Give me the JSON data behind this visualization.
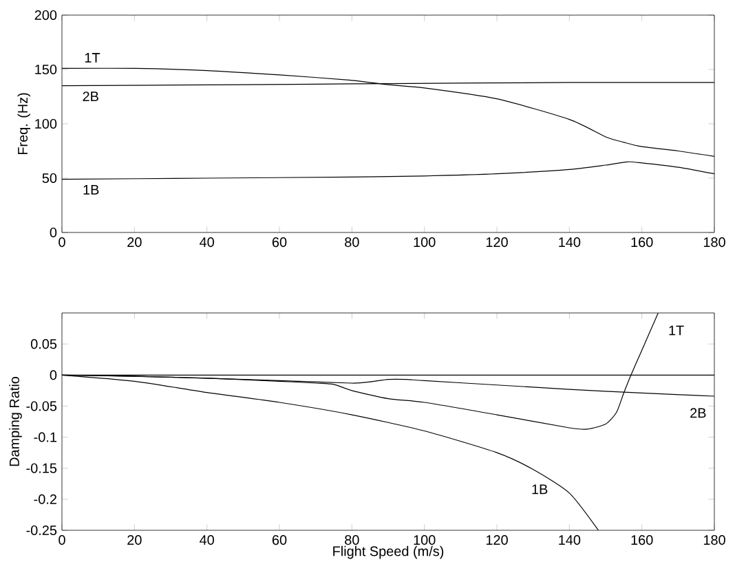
{
  "chart_data": [
    {
      "type": "line",
      "ylabel": "Freq. (Hz)",
      "xlim": [
        0,
        180
      ],
      "xticks": [
        0,
        20,
        40,
        60,
        80,
        100,
        120,
        140,
        160,
        180
      ],
      "ylim": [
        0,
        200
      ],
      "yticks": [
        0,
        50,
        100,
        150,
        200
      ],
      "series": [
        {
          "name": "1T",
          "color": "#000000",
          "x": [
            0,
            20,
            40,
            60,
            80,
            90,
            100,
            120,
            140,
            150,
            155,
            160,
            170,
            180
          ],
          "values": [
            151,
            151,
            149,
            145,
            140,
            136,
            133,
            123,
            104,
            88,
            83,
            79,
            75,
            70
          ]
        },
        {
          "name": "2B",
          "color": "#000000",
          "x": [
            0,
            50,
            90,
            140,
            180
          ],
          "values": [
            135,
            136,
            137,
            138,
            138
          ]
        },
        {
          "name": "1B",
          "color": "#000000",
          "x": [
            0,
            40,
            80,
            100,
            120,
            140,
            150,
            156,
            160,
            170,
            180
          ],
          "values": [
            49,
            50,
            51,
            52,
            54,
            58,
            62,
            65,
            64,
            60,
            54
          ]
        }
      ]
    },
    {
      "type": "line",
      "xlabel": "Flight Speed (m/s)",
      "ylabel": "Damping Ratio",
      "xlim": [
        0,
        180
      ],
      "xticks": [
        0,
        20,
        40,
        60,
        80,
        100,
        120,
        140,
        160,
        180
      ],
      "ylim": [
        -0.25,
        0.1
      ],
      "yticks": [
        -0.25,
        -0.2,
        -0.15,
        -0.1,
        -0.05,
        0,
        0.05
      ],
      "ref_lines": [
        {
          "axis": "y",
          "value": 0,
          "color": "#000000"
        }
      ],
      "series": [
        {
          "name": "1T",
          "color": "#000000",
          "x": [
            0,
            20,
            40,
            60,
            70,
            75,
            80,
            90,
            100,
            120,
            140,
            145,
            150,
            153,
            155,
            157,
            160,
            164.5
          ],
          "values": [
            0,
            -0.002,
            -0.005,
            -0.01,
            -0.013,
            -0.015,
            -0.025,
            -0.038,
            -0.044,
            -0.064,
            -0.085,
            -0.087,
            -0.079,
            -0.06,
            -0.029,
            0,
            0.04,
            0.1
          ]
        },
        {
          "name": "2B",
          "color": "#000000",
          "x": [
            0,
            20,
            40,
            60,
            80,
            85,
            90,
            95,
            100,
            120,
            140,
            160,
            180
          ],
          "values": [
            0,
            -0.002,
            -0.005,
            -0.009,
            -0.013,
            -0.011,
            -0.007,
            -0.007,
            -0.009,
            -0.016,
            -0.023,
            -0.029,
            -0.034
          ]
        },
        {
          "name": "1B",
          "color": "#000000",
          "x": [
            0,
            20,
            40,
            60,
            80,
            100,
            120,
            130,
            140,
            148
          ],
          "values": [
            0,
            -0.01,
            -0.028,
            -0.044,
            -0.064,
            -0.09,
            -0.125,
            -0.152,
            -0.19,
            -0.25
          ]
        }
      ]
    }
  ]
}
